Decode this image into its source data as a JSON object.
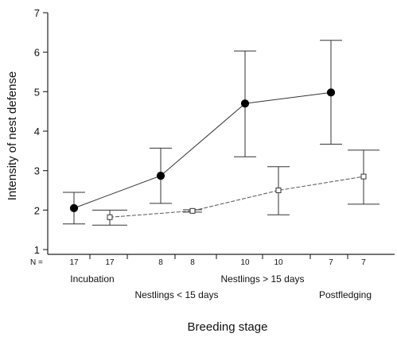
{
  "chart_data": {
    "type": "line",
    "xlabel": "Breeding stage",
    "ylabel": "Intensity of nest defense",
    "ylim": [
      1,
      7
    ],
    "yticks": [
      1,
      2,
      3,
      4,
      5,
      6,
      7
    ],
    "n_prefix": "N =",
    "positions": [
      "17",
      "17",
      "8",
      "8",
      "10",
      "10",
      "7",
      "7"
    ],
    "stages": [
      "Incubation",
      "Nestlings < 15 days",
      "Nestlings > 15 days",
      "Postfledging"
    ],
    "grid": false,
    "series": [
      {
        "marker": "filled-circle",
        "line": "solid",
        "x_index": [
          0,
          2,
          4,
          6
        ],
        "values": [
          2.05,
          2.87,
          4.7,
          4.98
        ],
        "err_low": [
          1.65,
          2.17,
          3.35,
          3.67
        ],
        "err_high": [
          2.45,
          3.57,
          6.03,
          6.3
        ]
      },
      {
        "marker": "open-square",
        "line": "dashed",
        "x_index": [
          1,
          3,
          5,
          7
        ],
        "values": [
          1.82,
          1.98,
          2.5,
          2.85
        ],
        "err_low": [
          1.62,
          1.95,
          1.88,
          2.15
        ],
        "err_high": [
          2.0,
          2.01,
          3.1,
          3.52
        ]
      }
    ]
  }
}
